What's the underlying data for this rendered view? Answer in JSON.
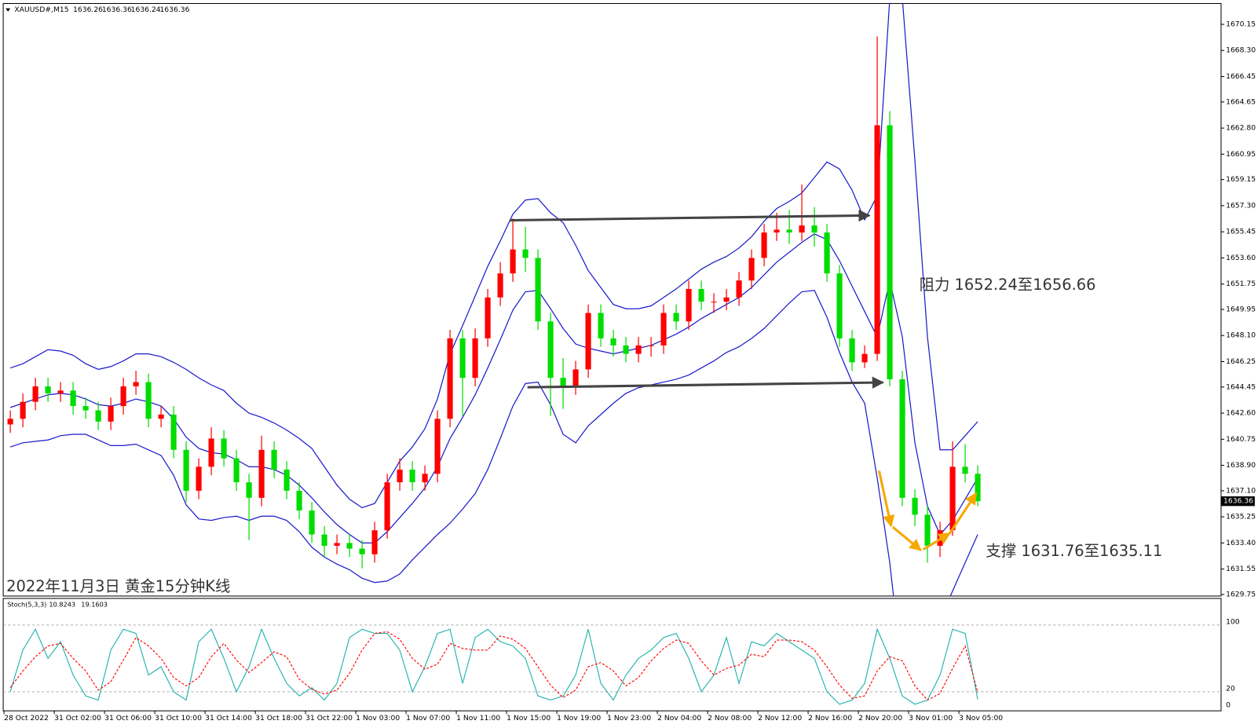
{
  "header": {
    "symbol": "XAUUSD#,M15",
    "ohlc": [
      1636.26,
      1636.36,
      1636.24,
      1636.36
    ]
  },
  "chart_data": [
    {
      "type": "candlestick",
      "categories": [
        "28 Oct 2022",
        "31 Oct 02:00",
        "31 Oct 06:00",
        "31 Oct 10:00",
        "31 Oct 14:00",
        "31 Oct 18:00",
        "31 Oct 22:00",
        "1 Nov 03:00",
        "1 Nov 07:00",
        "1 Nov 11:00",
        "1 Nov 15:00",
        "1 Nov 19:00",
        "1 Nov 23:00",
        "2 Nov 04:00",
        "2 Nov 08:00",
        "2 Nov 12:00",
        "2 Nov 16:00",
        "2 Nov 20:00",
        "3 Nov 01:00",
        "3 Nov 05:00"
      ],
      "open": [
        1641.8,
        1642.2,
        1643.4,
        1644.5,
        1644.0,
        1644.2,
        1643.1,
        1642.8,
        1642.0,
        1643.1,
        1644.5,
        1644.8,
        1642.2,
        1642.5,
        1640.0,
        1637.1,
        1638.8,
        1640.8,
        1639.4,
        1637.7,
        1636.6,
        1640.0,
        1638.6,
        1637.1,
        1635.7,
        1634.0,
        1633.2,
        1633.4,
        1633.0,
        1632.6,
        1634.3,
        1637.7,
        1638.6,
        1637.7,
        1638.3,
        1642.2,
        1647.9,
        1645.1,
        1647.9,
        1650.8,
        1652.5,
        1654.2,
        1653.6,
        1649.1,
        1645.1,
        1644.5,
        1645.7,
        1649.7,
        1647.9,
        1647.4,
        1646.8,
        1647.4,
        1647.4,
        1649.7,
        1649.1,
        1651.4,
        1650.5,
        1650.5,
        1650.8,
        1652.0,
        1653.6,
        1655.4,
        1655.6,
        1655.4,
        1655.9,
        1655.4,
        1652.5,
        1647.9,
        1646.2,
        1646.8,
        1663.0,
        1645.0,
        1636.6,
        1635.4,
        1633.2,
        1634.3,
        1638.8,
        1638.3
      ],
      "high": [
        1642.8,
        1644.0,
        1645.1,
        1645.1,
        1644.8,
        1644.8,
        1643.7,
        1643.4,
        1643.7,
        1645.1,
        1645.6,
        1645.4,
        1643.1,
        1643.1,
        1640.6,
        1639.4,
        1641.6,
        1641.4,
        1640.0,
        1638.3,
        1641.0,
        1640.6,
        1639.2,
        1637.7,
        1636.3,
        1634.6,
        1634.0,
        1634.0,
        1633.6,
        1634.9,
        1638.3,
        1639.4,
        1639.2,
        1638.9,
        1642.8,
        1648.5,
        1648.5,
        1648.6,
        1651.4,
        1653.3,
        1656.4,
        1655.8,
        1654.2,
        1649.7,
        1646.5,
        1646.3,
        1650.3,
        1650.3,
        1648.5,
        1648.0,
        1648.0,
        1648.0,
        1650.3,
        1650.3,
        1652.0,
        1652.0,
        1651.1,
        1651.4,
        1652.6,
        1654.2,
        1656.0,
        1656.8,
        1657.0,
        1658.8,
        1657.2,
        1656.0,
        1653.1,
        1648.5,
        1647.4,
        1669.3,
        1664.0,
        1645.6,
        1637.2,
        1636.0,
        1634.9,
        1640.6,
        1640.4,
        1638.9
      ],
      "low": [
        1641.2,
        1641.6,
        1642.8,
        1643.4,
        1643.4,
        1642.5,
        1642.2,
        1641.4,
        1641.4,
        1642.5,
        1643.9,
        1641.6,
        1641.6,
        1639.4,
        1636.3,
        1636.5,
        1638.2,
        1638.8,
        1637.1,
        1633.6,
        1636.0,
        1638.0,
        1636.5,
        1635.1,
        1633.4,
        1632.4,
        1632.6,
        1632.4,
        1631.6,
        1632.0,
        1633.7,
        1637.1,
        1637.1,
        1637.1,
        1637.7,
        1641.6,
        1642.4,
        1644.5,
        1647.3,
        1650.2,
        1651.9,
        1652.6,
        1648.5,
        1642.4,
        1642.9,
        1643.9,
        1645.1,
        1647.3,
        1646.6,
        1646.2,
        1646.2,
        1646.6,
        1646.8,
        1648.5,
        1648.5,
        1649.9,
        1649.7,
        1649.9,
        1650.2,
        1651.4,
        1653.0,
        1654.8,
        1654.6,
        1654.8,
        1654.4,
        1651.9,
        1647.3,
        1645.6,
        1645.8,
        1646.3,
        1644.5,
        1636.0,
        1634.6,
        1632.0,
        1632.4,
        1633.9,
        1637.7,
        1636.0
      ],
      "close": [
        1642.2,
        1643.4,
        1644.5,
        1644.0,
        1644.2,
        1643.1,
        1642.8,
        1642.0,
        1643.1,
        1644.5,
        1644.8,
        1642.2,
        1642.5,
        1640.0,
        1637.1,
        1638.8,
        1640.8,
        1639.4,
        1637.7,
        1636.6,
        1640.0,
        1638.6,
        1637.1,
        1635.7,
        1634.0,
        1633.2,
        1633.4,
        1633.0,
        1632.6,
        1634.3,
        1637.7,
        1638.6,
        1637.7,
        1638.3,
        1642.2,
        1647.9,
        1645.1,
        1647.9,
        1650.8,
        1652.5,
        1654.2,
        1653.6,
        1649.1,
        1645.1,
        1644.5,
        1645.7,
        1649.7,
        1647.9,
        1647.4,
        1646.8,
        1647.4,
        1647.4,
        1649.7,
        1649.1,
        1651.4,
        1650.5,
        1650.5,
        1650.8,
        1652.0,
        1653.6,
        1655.4,
        1655.6,
        1655.4,
        1655.9,
        1655.4,
        1652.5,
        1647.9,
        1646.2,
        1646.8,
        1663.0,
        1645.0,
        1636.6,
        1635.4,
        1633.2,
        1634.3,
        1638.8,
        1638.3,
        1636.36
      ],
      "upper_band": [
        1645.8,
        1646.1,
        1646.6,
        1647.1,
        1647.0,
        1646.7,
        1646.1,
        1645.7,
        1645.9,
        1646.3,
        1646.8,
        1646.8,
        1646.6,
        1646.2,
        1645.7,
        1645.1,
        1644.6,
        1644.2,
        1643.3,
        1642.6,
        1642.3,
        1641.9,
        1641.4,
        1640.8,
        1640.1,
        1638.8,
        1637.5,
        1636.5,
        1635.9,
        1636.2,
        1637.7,
        1639.2,
        1640.2,
        1641.5,
        1643.6,
        1646.8,
        1648.8,
        1650.9,
        1653.0,
        1654.8,
        1656.7,
        1657.7,
        1657.8,
        1656.8,
        1656.1,
        1654.5,
        1652.7,
        1651.5,
        1650.3,
        1650.0,
        1650.0,
        1650.2,
        1650.8,
        1651.4,
        1652.1,
        1652.8,
        1653.3,
        1653.7,
        1654.3,
        1655.1,
        1656.2,
        1657.1,
        1657.6,
        1658.2,
        1659.3,
        1660.4,
        1659.9,
        1658.4,
        1656.3,
        1658.0,
        1672.0,
        1672.0,
        1660.5,
        1648.0,
        1640.0,
        1640.0,
        1641.0,
        1642.0
      ],
      "middle_band": [
        1643.0,
        1643.3,
        1643.6,
        1643.9,
        1644.0,
        1643.9,
        1643.6,
        1643.2,
        1643.1,
        1643.3,
        1643.6,
        1643.4,
        1643.1,
        1642.2,
        1640.9,
        1640.1,
        1639.8,
        1639.7,
        1639.3,
        1638.8,
        1638.8,
        1638.6,
        1638.2,
        1637.5,
        1636.6,
        1635.6,
        1634.7,
        1634.0,
        1633.4,
        1633.4,
        1634.2,
        1635.2,
        1636.2,
        1637.3,
        1638.8,
        1640.8,
        1642.3,
        1643.9,
        1645.8,
        1647.8,
        1649.9,
        1651.2,
        1651.3,
        1650.0,
        1648.6,
        1647.5,
        1647.2,
        1647.0,
        1646.8,
        1647.0,
        1647.2,
        1647.4,
        1647.8,
        1648.2,
        1648.7,
        1649.3,
        1649.8,
        1650.3,
        1650.8,
        1651.5,
        1652.4,
        1653.3,
        1654.0,
        1654.7,
        1655.3,
        1654.9,
        1653.4,
        1651.6,
        1649.8,
        1648.0,
        1652.0,
        1648.0,
        1640.5,
        1636.0,
        1634.0,
        1635.0,
        1636.5,
        1638.0
      ],
      "lower_band": [
        1640.2,
        1640.5,
        1640.6,
        1640.7,
        1641.0,
        1641.1,
        1641.1,
        1640.7,
        1640.3,
        1640.3,
        1640.4,
        1640.0,
        1639.6,
        1638.2,
        1636.1,
        1635.1,
        1635.0,
        1635.2,
        1635.3,
        1635.0,
        1635.3,
        1635.3,
        1635.0,
        1634.2,
        1633.1,
        1632.4,
        1631.9,
        1631.5,
        1630.9,
        1630.6,
        1630.7,
        1631.2,
        1632.2,
        1633.1,
        1634.0,
        1634.8,
        1635.8,
        1636.9,
        1638.6,
        1640.8,
        1643.1,
        1644.7,
        1644.8,
        1643.2,
        1641.1,
        1640.5,
        1641.7,
        1642.5,
        1643.3,
        1644.0,
        1644.4,
        1644.6,
        1644.8,
        1645.0,
        1645.3,
        1645.8,
        1646.3,
        1646.9,
        1647.3,
        1647.9,
        1648.6,
        1649.5,
        1650.4,
        1651.2,
        1651.3,
        1649.4,
        1646.9,
        1644.8,
        1643.3,
        1638.0,
        1632.0,
        1624.0,
        1620.5,
        1624.0,
        1628.0,
        1630.0,
        1632.0,
        1634.0
      ],
      "up_color": "#ff0000",
      "down_color": "#00dd00",
      "band_color": "#1a1acc",
      "ylim": [
        1629.64,
        1671.57
      ],
      "yticks": [
        1670.15,
        {
          "value": 1668.3,
          "label": "1668.30"
        },
        1666.45,
        1664.65,
        {
          "value": 1662.8,
          "label": "1662.80"
        },
        1660.95,
        1659.15,
        {
          "value": 1657.3,
          "label": "1657.30"
        },
        1655.45,
        {
          "value": 1653.6,
          "label": "1653.60"
        },
        1651.75,
        1649.95,
        {
          "value": 1648.1,
          "label": "1648.10"
        },
        1646.25,
        1644.45,
        {
          "value": 1642.6,
          "label": "1642.60"
        },
        1640.75,
        {
          "value": 1638.9,
          "label": "1638.90"
        },
        {
          "value": 1637.1,
          "label": "1637.10"
        },
        1635.25,
        {
          "value": 1633.4,
          "label": "1633.40"
        },
        1631.55,
        1629.75
      ],
      "annotations": [
        "阻力 1652.24至1656.66",
        "支撑 1631.76至1635.11",
        "2022年11月3日 黄金15分钟K线"
      ]
    },
    {
      "type": "stochastic",
      "label": "Stoch(5,3,3)",
      "series": [
        {
          "color": "#20b2aa",
          "values": [
            20,
            70,
            95,
            60,
            80,
            40,
            15,
            10,
            70,
            95,
            90,
            40,
            50,
            20,
            10,
            80,
            95,
            60,
            20,
            50,
            95,
            60,
            30,
            15,
            25,
            10,
            30,
            85,
            95,
            90,
            90,
            70,
            20,
            50,
            90,
            95,
            30,
            85,
            95,
            80,
            75,
            60,
            15,
            10,
            15,
            40,
            95,
            30,
            10,
            40,
            60,
            70,
            85,
            90,
            60,
            20,
            40,
            85,
            30,
            80,
            75,
            90,
            80,
            70,
            60,
            20,
            5,
            10,
            30,
            95,
            60,
            15,
            5,
            10,
            40,
            95,
            90,
            10.8243
          ]
        },
        {
          "color": "#ff0000",
          "dashed": true,
          "values": [
            25,
            45,
            62,
            75,
            78,
            60,
            45,
            22,
            32,
            58,
            85,
            75,
            60,
            37,
            27,
            37,
            62,
            78,
            58,
            43,
            55,
            68,
            62,
            35,
            23,
            17,
            22,
            42,
            70,
            90,
            92,
            83,
            60,
            47,
            53,
            78,
            72,
            70,
            70,
            87,
            83,
            72,
            50,
            28,
            13,
            22,
            50,
            55,
            45,
            27,
            37,
            57,
            72,
            82,
            78,
            57,
            40,
            48,
            52,
            65,
            62,
            82,
            82,
            80,
            70,
            50,
            28,
            12,
            15,
            45,
            62,
            57,
            27,
            10,
            18,
            48,
            75,
            19.1603
          ]
        }
      ],
      "ylim": [
        0,
        130
      ],
      "yticks": [
        0,
        20,
        100
      ]
    }
  ]
}
